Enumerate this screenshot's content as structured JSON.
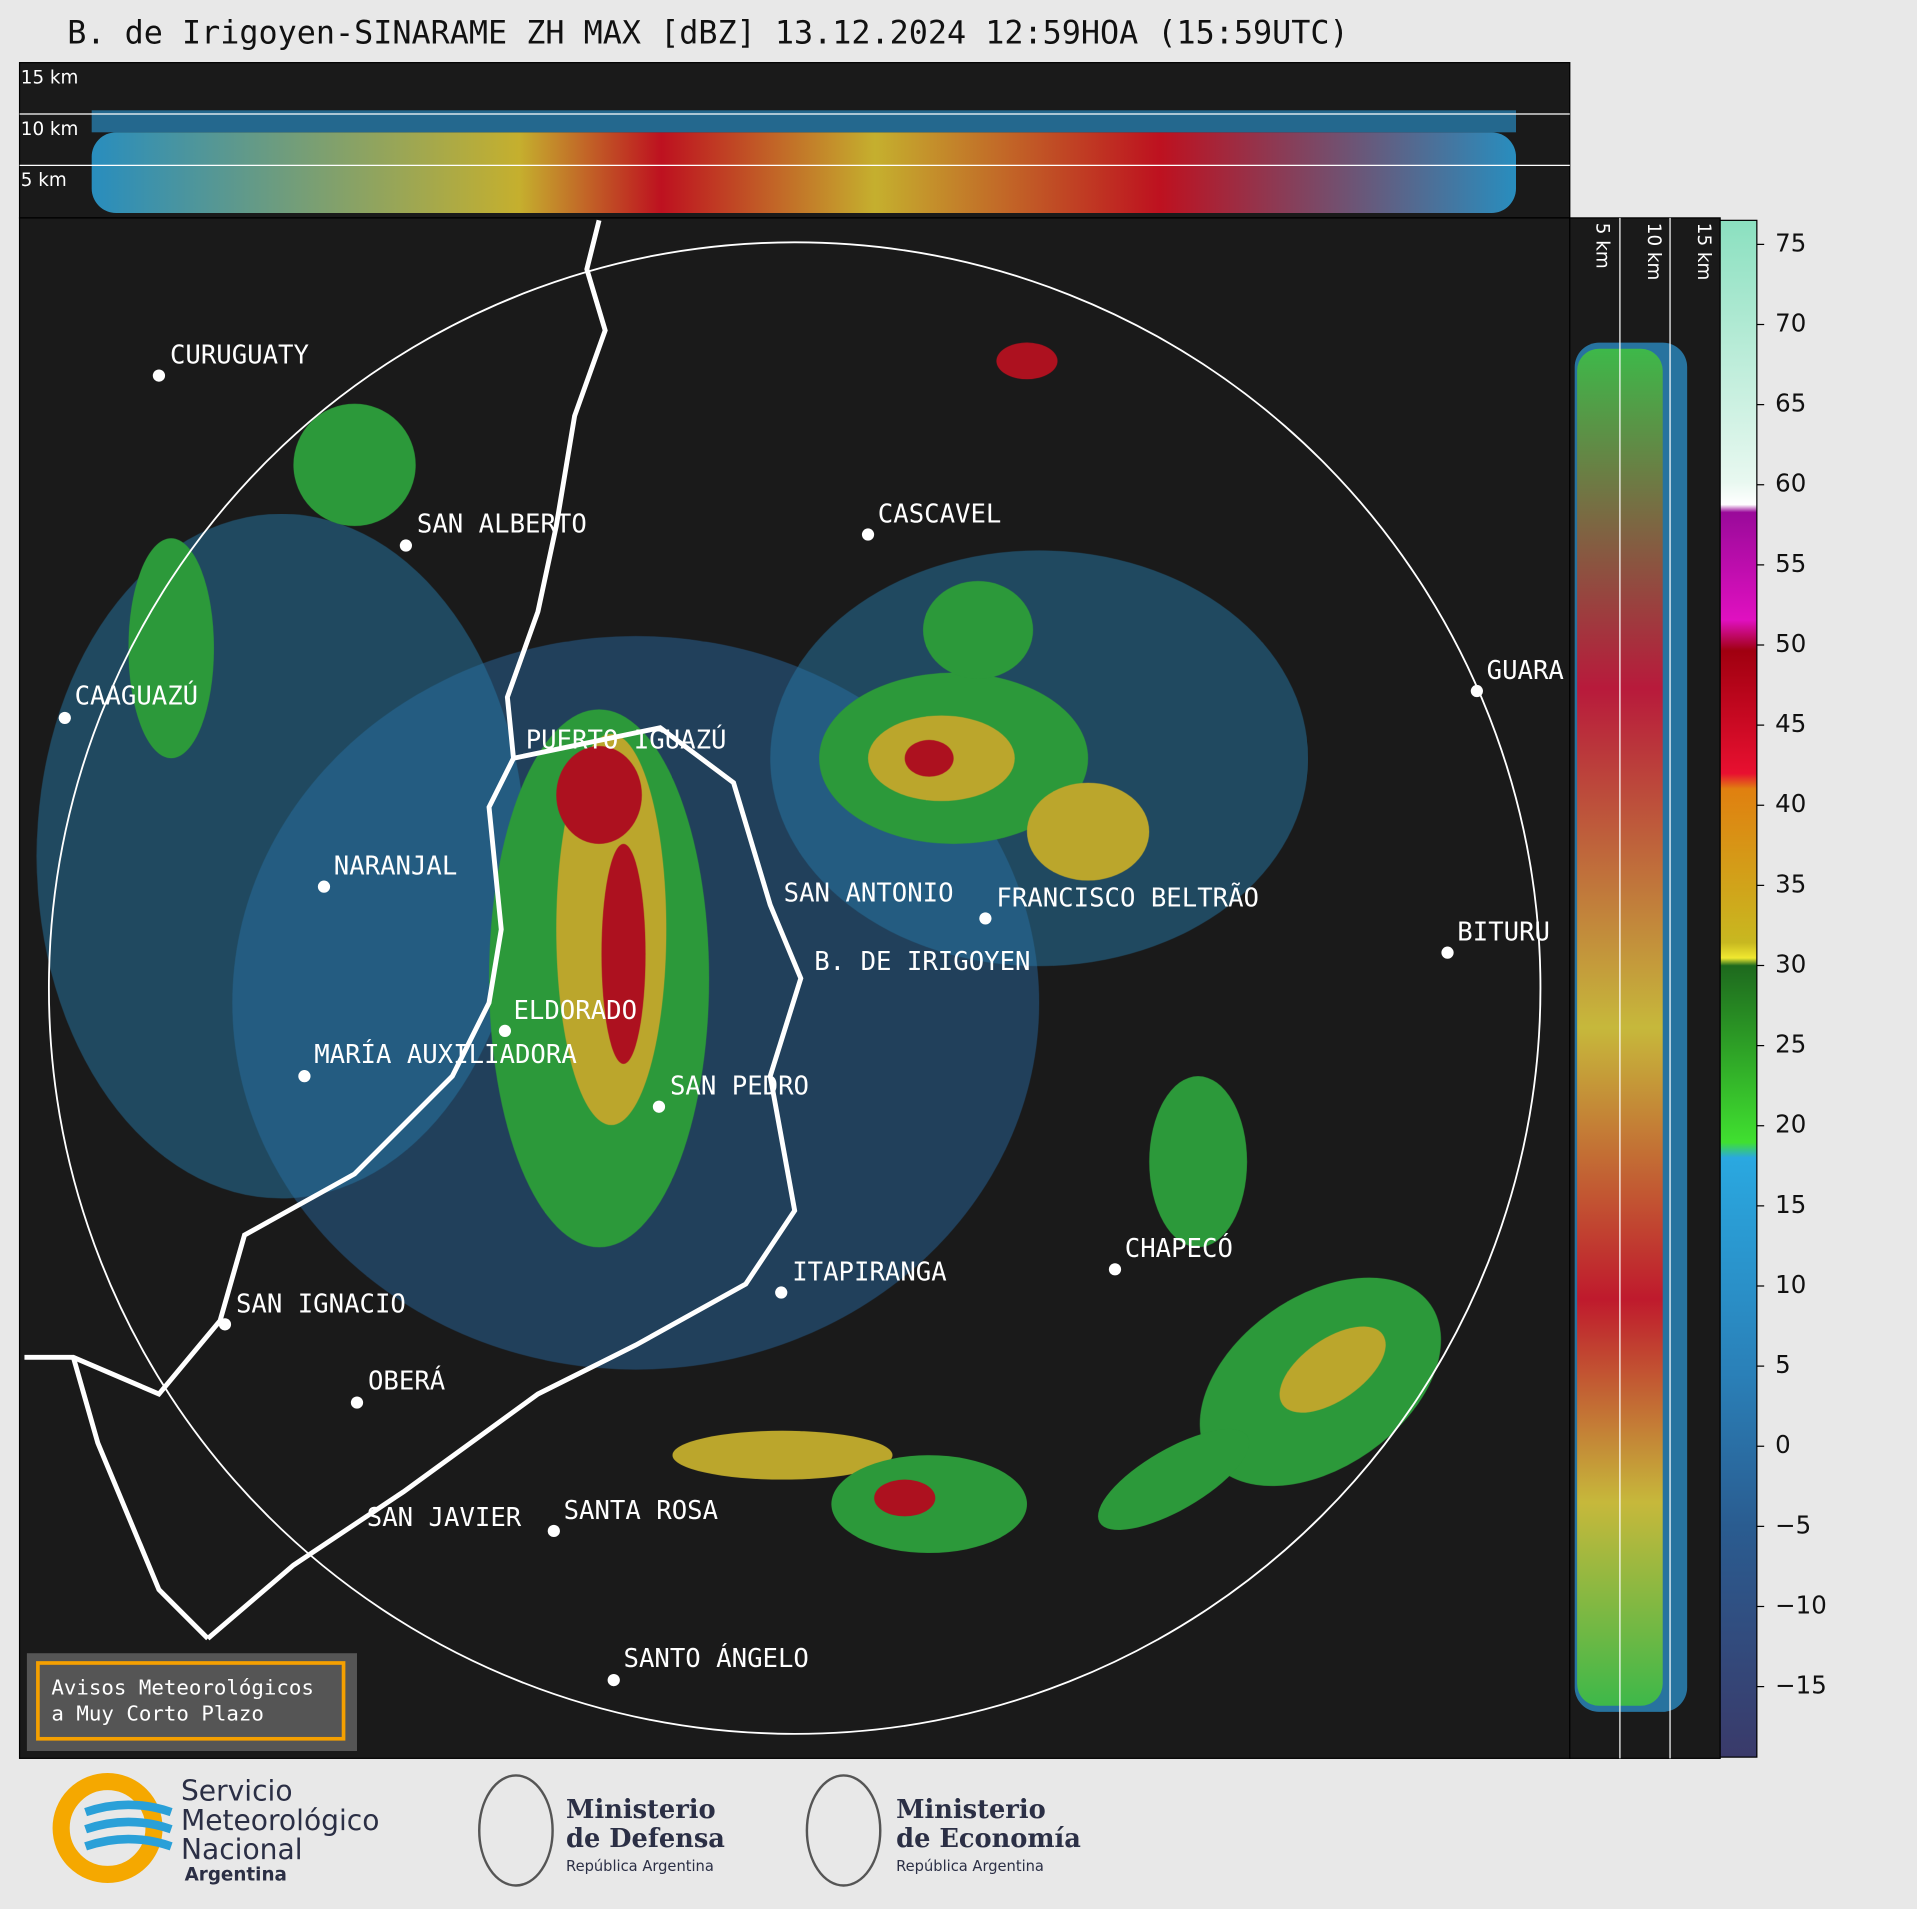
{
  "header": {
    "title": "B. de Irigoyen-SINARAME ZH MAX [dBZ] 13.12.2024 12:59HOA (15:59UTC)"
  },
  "top_panel": {
    "height_labels": [
      "15 km",
      "10 km",
      "5 km"
    ]
  },
  "side_panel": {
    "height_labels": [
      "5 km",
      "10 km",
      "15 km"
    ]
  },
  "map": {
    "cities": [
      "CURUGUATY",
      "SAN ALBERTO",
      "CAAGUAZÚ",
      "CASCAVEL",
      "GUARA",
      "PUERTO IGUAZÚ",
      "NARANJAL",
      "SAN ANTONIO",
      "FRANCISCO BELTRÃO",
      "BITURU",
      "B. DE IRIGOYEN",
      "ELDORADO",
      "MARÍA AUXILIADORA",
      "SAN PEDRO",
      "CHAPECÓ",
      "ITAPIRANGA",
      "SAN IGNACIO",
      "OBERÁ",
      "SAN JAVIER",
      "SANTA ROSA",
      "SANTO ÁNGELO"
    ]
  },
  "colorbar": {
    "lim": [
      -19.4,
      76.5
    ],
    "ticks": [
      75,
      70,
      65,
      60,
      55,
      50,
      45,
      40,
      35,
      30,
      25,
      20,
      15,
      10,
      5,
      0,
      {
        "value": -5,
        "label": "−5"
      },
      {
        "value": -10,
        "label": "−10"
      },
      {
        "value": -15,
        "label": "−15"
      }
    ]
  },
  "notice": {
    "lines": [
      "Avisos Meteorológicos",
      "a Muy Corto Plazo"
    ]
  },
  "footer": {
    "smn": [
      "Servicio",
      "Meteorológico",
      "Nacional",
      "Argentina"
    ],
    "defensa": [
      "Ministerio",
      "de Defensa",
      "República Argentina"
    ],
    "economia": [
      "Ministerio",
      "de Economía",
      "República Argentina"
    ]
  }
}
